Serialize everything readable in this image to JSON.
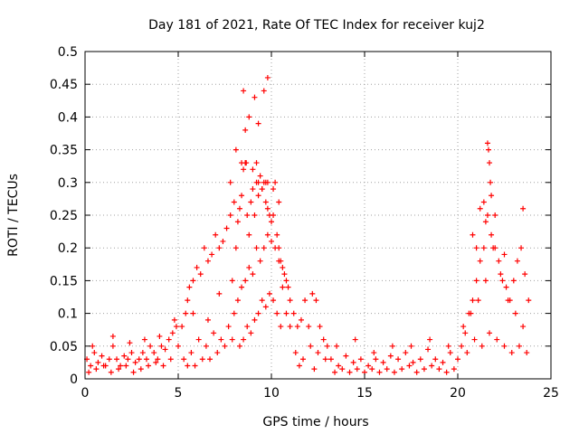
{
  "chart_data": {
    "type": "scatter",
    "title": "Day 181 of 2021, Rate Of TEC Index for receiver kuj2",
    "xlabel": "GPS time / hours",
    "ylabel": "ROTI / TECUs",
    "xlim": [
      0,
      25
    ],
    "ylim": [
      0,
      0.5
    ],
    "x_ticks": [
      "0",
      "5",
      "10",
      "15",
      "20",
      "25"
    ],
    "y_ticks": [
      "0",
      "0.05",
      "0.1",
      "0.15",
      "0.2",
      "0.25",
      "0.3",
      "0.35",
      "0.4",
      "0.45",
      "0.5"
    ],
    "grid": true,
    "marker": "+",
    "color": "#ff0000",
    "series": [
      {
        "name": "ROTI",
        "x": [
          0.1,
          0.3,
          0.5,
          0.7,
          0.9,
          1.1,
          1.3,
          1.5,
          1.7,
          1.9,
          2.1,
          2.3,
          2.5,
          2.7,
          2.9,
          3.1,
          3.3,
          3.5,
          3.7,
          3.9,
          4.1,
          4.3,
          4.5,
          4.7,
          4.9,
          0.2,
          0.6,
          1.0,
          1.4,
          1.8,
          2.2,
          2.6,
          3.0,
          3.4,
          3.8,
          4.2,
          4.6,
          0.4,
          1.5,
          2.4,
          3.2,
          4.0,
          4.8,
          5.0,
          5.2,
          5.4,
          5.5,
          5.6,
          5.8,
          6.0,
          6.2,
          6.4,
          6.6,
          6.8,
          7.0,
          7.2,
          7.4,
          7.6,
          7.8,
          8.0,
          5.3,
          5.7,
          6.1,
          6.5,
          6.9,
          7.3,
          7.7,
          5.5,
          5.9,
          6.3,
          6.7,
          7.1,
          7.5,
          7.9,
          5.8,
          6.6,
          7.2,
          7.9,
          8.1,
          8.2,
          8.3,
          8.4,
          8.5,
          8.6,
          8.7,
          8.8,
          8.9,
          9.0,
          9.1,
          9.2,
          9.3,
          9.4,
          9.5,
          9.6,
          9.7,
          9.8,
          9.9,
          10.0,
          10.1,
          10.2,
          10.3,
          10.4,
          10.5,
          10.6,
          10.7,
          10.8,
          10.9,
          11.0,
          8.0,
          8.2,
          8.4,
          8.6,
          8.8,
          9.0,
          9.2,
          9.4,
          9.6,
          9.8,
          10.0,
          10.2,
          10.4,
          10.6,
          10.8,
          11.0,
          8.3,
          8.5,
          8.7,
          8.9,
          9.1,
          9.3,
          9.5,
          9.7,
          9.9,
          10.1,
          10.3,
          10.5,
          7.8,
          8.1,
          8.4,
          8.6,
          8.8,
          9.1,
          9.3,
          9.6,
          9.8,
          10.1,
          10.4,
          8.5,
          8.6,
          8.65,
          9.0,
          9.2,
          9.3,
          9.5,
          9.7,
          9.8,
          11.2,
          11.4,
          11.6,
          11.8,
          12.0,
          12.2,
          12.4,
          12.6,
          12.8,
          13.0,
          11.3,
          11.7,
          12.1,
          12.5,
          12.9,
          11.5,
          12.3,
          13.2,
          13.6,
          14.0,
          14.4,
          14.8,
          15.2,
          15.6,
          16.0,
          16.4,
          16.8,
          17.2,
          17.6,
          18.0,
          18.4,
          18.8,
          19.2,
          19.6,
          13.4,
          13.8,
          14.2,
          14.6,
          15.0,
          15.4,
          15.8,
          16.2,
          16.6,
          17.0,
          17.4,
          17.8,
          18.2,
          18.6,
          19.0,
          19.4,
          19.8,
          13.5,
          14.5,
          15.5,
          16.5,
          17.5,
          18.5,
          19.5,
          20.0,
          20.2,
          20.4,
          20.6,
          20.8,
          21.0,
          21.2,
          21.4,
          21.6,
          21.8,
          22.0,
          22.2,
          22.4,
          22.6,
          22.8,
          23.0,
          23.2,
          23.4,
          23.6,
          23.8,
          20.3,
          20.7,
          21.1,
          21.5,
          21.9,
          22.3,
          22.7,
          23.1,
          23.5,
          20.5,
          20.9,
          21.3,
          21.7,
          22.1,
          22.5,
          22.9,
          23.3,
          23.7,
          21.6,
          21.65,
          21.7,
          21.75,
          21.8,
          21.4,
          21.5,
          22.0,
          21.2,
          23.5,
          22.5,
          21.0,
          20.8
        ],
        "y": [
          0.03,
          0.02,
          0.04,
          0.025,
          0.035,
          0.02,
          0.03,
          0.05,
          0.03,
          0.02,
          0.035,
          0.03,
          0.04,
          0.025,
          0.03,
          0.04,
          0.03,
          0.05,
          0.04,
          0.03,
          0.05,
          0.045,
          0.06,
          0.07,
          0.08,
          0.01,
          0.015,
          0.02,
          0.01,
          0.015,
          0.02,
          0.01,
          0.015,
          0.02,
          0.025,
          0.02,
          0.03,
          0.05,
          0.065,
          0.055,
          0.06,
          0.065,
          0.09,
          0.05,
          0.08,
          0.1,
          0.12,
          0.14,
          0.15,
          0.17,
          0.16,
          0.2,
          0.18,
          0.19,
          0.22,
          0.2,
          0.21,
          0.23,
          0.25,
          0.27,
          0.03,
          0.04,
          0.06,
          0.05,
          0.07,
          0.06,
          0.08,
          0.02,
          0.02,
          0.03,
          0.03,
          0.04,
          0.05,
          0.06,
          0.1,
          0.09,
          0.13,
          0.15,
          0.2,
          0.24,
          0.26,
          0.28,
          0.32,
          0.33,
          0.25,
          0.22,
          0.27,
          0.29,
          0.25,
          0.3,
          0.28,
          0.31,
          0.29,
          0.3,
          0.27,
          0.26,
          0.25,
          0.24,
          0.25,
          0.3,
          0.22,
          0.2,
          0.18,
          0.17,
          0.16,
          0.15,
          0.14,
          0.12,
          0.1,
          0.12,
          0.14,
          0.15,
          0.17,
          0.16,
          0.2,
          0.18,
          0.2,
          0.22,
          0.21,
          0.2,
          0.18,
          0.14,
          0.1,
          0.08,
          0.05,
          0.06,
          0.08,
          0.07,
          0.09,
          0.1,
          0.12,
          0.11,
          0.13,
          0.12,
          0.1,
          0.08,
          0.3,
          0.35,
          0.33,
          0.38,
          0.4,
          0.43,
          0.39,
          0.44,
          0.46,
          0.29,
          0.27,
          0.44,
          0.33,
          0.33,
          0.32,
          0.33,
          0.3,
          0.29,
          0.3,
          0.3,
          0.1,
          0.08,
          0.09,
          0.12,
          0.08,
          0.13,
          0.12,
          0.08,
          0.06,
          0.05,
          0.04,
          0.03,
          0.05,
          0.04,
          0.03,
          0.02,
          0.015,
          0.03,
          0.02,
          0.035,
          0.025,
          0.03,
          0.02,
          0.03,
          0.025,
          0.035,
          0.03,
          0.04,
          0.025,
          0.03,
          0.045,
          0.03,
          0.025,
          0.04,
          0.01,
          0.015,
          0.01,
          0.015,
          0.01,
          0.015,
          0.01,
          0.015,
          0.01,
          0.015,
          0.02,
          0.01,
          0.015,
          0.02,
          0.015,
          0.01,
          0.015,
          0.05,
          0.06,
          0.04,
          0.05,
          0.05,
          0.06,
          0.05,
          0.03,
          0.05,
          0.07,
          0.1,
          0.12,
          0.15,
          0.18,
          0.2,
          0.25,
          0.22,
          0.2,
          0.18,
          0.15,
          0.14,
          0.12,
          0.15,
          0.18,
          0.2,
          0.16,
          0.12,
          0.08,
          0.1,
          0.12,
          0.15,
          0.2,
          0.16,
          0.12,
          0.1,
          0.08,
          0.04,
          0.06,
          0.05,
          0.07,
          0.06,
          0.05,
          0.04,
          0.05,
          0.04,
          0.36,
          0.35,
          0.33,
          0.3,
          0.28,
          0.27,
          0.24,
          0.25,
          0.26,
          0.26,
          0.19,
          0.2,
          0.22
        ]
      }
    ]
  }
}
